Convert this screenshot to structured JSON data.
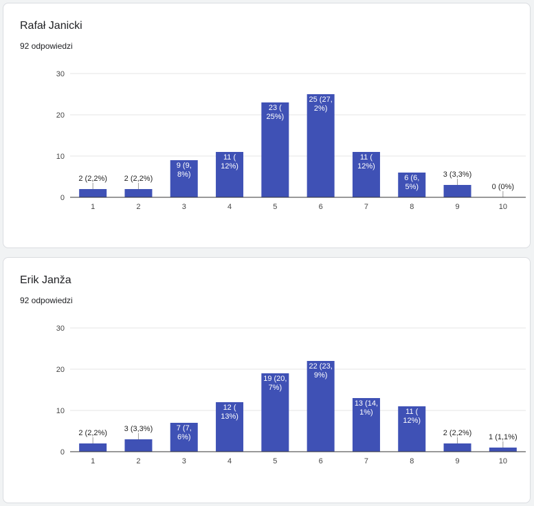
{
  "colors": {
    "bar": "#3f51b5",
    "grid": "#e6e6e6",
    "axis": "#333333",
    "label_inside": "#ffffff",
    "label_outside": "#222222",
    "leader": "#999999"
  },
  "cards": [
    {
      "title": "Rafał Janicki",
      "subtitle": "92 odpowiedzi"
    },
    {
      "title": "Erik Janža",
      "subtitle": "92 odpowiedzi"
    }
  ],
  "chart_data": [
    {
      "type": "bar",
      "categories": [
        "1",
        "2",
        "3",
        "4",
        "5",
        "6",
        "7",
        "8",
        "9",
        "10"
      ],
      "values": [
        2,
        2,
        9,
        11,
        23,
        25,
        11,
        6,
        3,
        0
      ],
      "data_labels": [
        [
          "2 (2,2%)"
        ],
        [
          "2 (2,2%)"
        ],
        [
          "9 (9,",
          "8%)"
        ],
        [
          "11 (",
          "12%)"
        ],
        [
          "23 (",
          "25%)"
        ],
        [
          "25 (27,",
          "2%)"
        ],
        [
          "11 (",
          "12%)"
        ],
        [
          "6 (6,",
          "5%)"
        ],
        [
          "3 (3,3%)"
        ],
        [
          "0 (0%)"
        ]
      ],
      "yticks": [
        0,
        10,
        20,
        30
      ],
      "ylim": [
        0,
        30
      ]
    },
    {
      "type": "bar",
      "categories": [
        "1",
        "2",
        "3",
        "4",
        "5",
        "6",
        "7",
        "8",
        "9",
        "10"
      ],
      "values": [
        2,
        3,
        7,
        12,
        19,
        22,
        13,
        11,
        2,
        1
      ],
      "data_labels": [
        [
          "2 (2,2%)"
        ],
        [
          "3 (3,3%)"
        ],
        [
          "7 (7,",
          "6%)"
        ],
        [
          "12 (",
          "13%)"
        ],
        [
          "19 (20,",
          "7%)"
        ],
        [
          "22 (23,",
          "9%)"
        ],
        [
          "13 (14,",
          "1%)"
        ],
        [
          "11 (",
          "12%)"
        ],
        [
          "2 (2,2%)"
        ],
        [
          "1 (1,1%)"
        ]
      ],
      "yticks": [
        0,
        10,
        20,
        30
      ],
      "ylim": [
        0,
        30
      ]
    }
  ]
}
